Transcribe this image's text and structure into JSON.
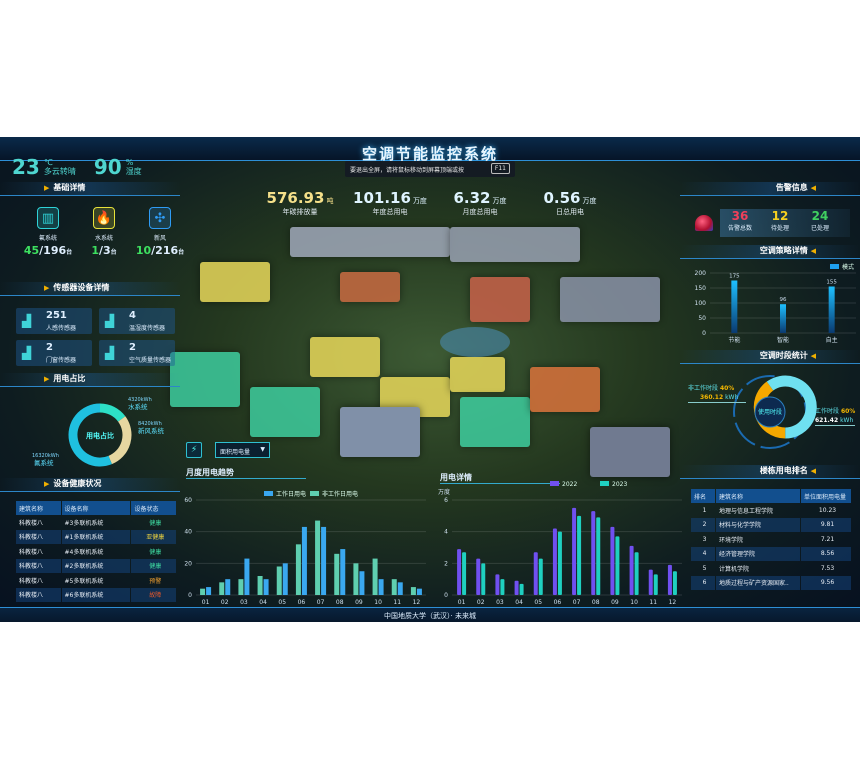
{
  "header": {
    "title": "空调节能监控系统",
    "fullscreen_tip": "要退出全屏，请将鼠标移动到屏幕顶端或按",
    "fullscreen_key": "F11"
  },
  "weather": {
    "temp": "23",
    "temp_unit": "℃",
    "condition": "多云转晴",
    "humidity": "90",
    "humidity_unit": "%",
    "humidity_label": "湿度"
  },
  "stats": [
    {
      "value": "576.93",
      "unit": "吨",
      "label": "年碳排放量",
      "color": "#f5e08a"
    },
    {
      "value": "101.16",
      "unit": "万度",
      "label": "年度总用电",
      "color": "#dff4ff"
    },
    {
      "value": "6.32",
      "unit": "万度",
      "label": "月度总用电",
      "color": "#dff4ff"
    },
    {
      "value": "0.56",
      "unit": "万度",
      "label": "日总用电",
      "color": "#dff4ff"
    }
  ],
  "basic": {
    "title": "基础详情",
    "systems": [
      {
        "name": "氟系统",
        "on": "45",
        "total": "/196",
        "unit": "台",
        "icon": "fluorine-system-icon",
        "color": "#2fd3d8"
      },
      {
        "name": "水系统",
        "on": "1",
        "total": "/3",
        "unit": "台",
        "icon": "water-system-icon",
        "color": "#e8e23a"
      },
      {
        "name": "新风",
        "on": "10",
        "total": "/216",
        "unit": "台",
        "icon": "fresh-air-fan-icon",
        "color": "#2f9cf5"
      }
    ]
  },
  "sensors": {
    "title": "传感器设备详情",
    "items": [
      {
        "value": "251",
        "label": "人感传感器"
      },
      {
        "value": "4",
        "label": "温湿度传感器"
      },
      {
        "value": "2",
        "label": "门窗传感器"
      },
      {
        "value": "2",
        "label": "空气质量传感器"
      }
    ]
  },
  "power_share": {
    "title": "用电占比",
    "center": "用电占比",
    "slices": [
      {
        "name": "水系统",
        "value": "4320kWh",
        "num": 4320,
        "color": "#2de0c6"
      },
      {
        "name": "新风系统",
        "value": "8420kWh",
        "num": 8420,
        "color": "#e6d6a0"
      },
      {
        "name": "氟系统",
        "value": "16320kWh",
        "num": 16320,
        "color": "#1fc0e0"
      }
    ]
  },
  "health": {
    "title": "设备健康状况",
    "columns": [
      "建筑名称",
      "设备名称",
      "设备状态"
    ],
    "rows": [
      [
        "科教楼八",
        "#3多联机系统",
        "健康"
      ],
      [
        "科教楼八",
        "#1多联机系统",
        "亚健康"
      ],
      [
        "科教楼八",
        "#4多联机系统",
        "健康"
      ],
      [
        "科教楼八",
        "#2多联机系统",
        "健康"
      ],
      [
        "科教楼八",
        "#5多联机系统",
        "预警"
      ],
      [
        "科教楼八",
        "#6多联机系统",
        "故障"
      ]
    ],
    "status_colors": {
      "健康": "#3ed9a0",
      "亚健康": "#e8d040",
      "预警": "#f0a030",
      "故障": "#f05a2a"
    }
  },
  "alarm": {
    "title": "告警信息",
    "items": [
      {
        "value": "36",
        "label": "告警总数",
        "color": "#f0405a"
      },
      {
        "value": "12",
        "label": "待处理",
        "color": "#f5d020"
      },
      {
        "value": "24",
        "label": "已处理",
        "color": "#40d060"
      }
    ]
  },
  "strategy": {
    "title": "空调策略详情"
  },
  "period": {
    "title": "空调时段统计",
    "center": "使用时段",
    "nonwork": {
      "label": "非工作时段",
      "pct": "40%",
      "value": "360.12",
      "unit": "kWh",
      "num": 40,
      "color": "#f5a800"
    },
    "work": {
      "label": "工作时段",
      "pct": "60%",
      "value": "621.42",
      "unit": "kWh",
      "num": 60,
      "color": "#6fe0f0"
    }
  },
  "ranking": {
    "title": "楼栋用电排名",
    "columns": [
      "排名",
      "建筑名称",
      "单位面积用电量"
    ],
    "rows": [
      [
        "1",
        "地理与信息工程学院",
        "10.23"
      ],
      [
        "2",
        "材料与化学学院",
        "9.81"
      ],
      [
        "3",
        "环境学院",
        "7.21"
      ],
      [
        "4",
        "经济管理学院",
        "8.56"
      ],
      [
        "5",
        "计算机学院",
        "7.53"
      ],
      [
        "6",
        "地质过程与矿产资源国家..",
        "9.56"
      ]
    ]
  },
  "selector": {
    "value": "面积用电量"
  },
  "footer": "中国地质大学（武汉）· 未来城",
  "chart_data": [
    {
      "type": "bar",
      "title": "空调策略详情",
      "categories": [
        "节能",
        "智能",
        "自主"
      ],
      "series": [
        {
          "name": "模式",
          "values": [
            175,
            96,
            155
          ]
        }
      ],
      "ylim": [
        0,
        200
      ],
      "yticks": [
        0,
        50,
        100,
        150,
        200
      ],
      "show_data_labels": true,
      "legend": "top-right"
    },
    {
      "type": "bar",
      "title": "月度用电趋势",
      "categories": [
        "01",
        "02",
        "03",
        "04",
        "05",
        "06",
        "07",
        "08",
        "09",
        "10",
        "11",
        "12"
      ],
      "series": [
        {
          "name": "工作日用电",
          "color": "#3aa8f0",
          "values": [
            5,
            10,
            23,
            10,
            20,
            43,
            43,
            29,
            15,
            10,
            8,
            4
          ]
        },
        {
          "name": "非工作日用电",
          "color": "#5fcfb0",
          "values": [
            4,
            8,
            10,
            12,
            18,
            32,
            47,
            26,
            20,
            23,
            10,
            5
          ]
        }
      ],
      "ylim": [
        0,
        60
      ],
      "yticks": [
        0,
        20,
        40,
        60
      ],
      "legend": "top"
    },
    {
      "type": "bar",
      "title": "用电详情",
      "ylabel": "万度",
      "categories": [
        "01",
        "02",
        "03",
        "04",
        "05",
        "06",
        "07",
        "08",
        "09",
        "10",
        "11",
        "12"
      ],
      "series": [
        {
          "name": "2022",
          "color": "#7050f0",
          "values": [
            2.9,
            2.3,
            1.3,
            0.9,
            2.7,
            4.2,
            5.5,
            5.3,
            4.3,
            3.1,
            1.6,
            1.9
          ]
        },
        {
          "name": "2023",
          "color": "#1fd0c0",
          "values": [
            2.7,
            2.0,
            1.0,
            0.7,
            2.3,
            4.0,
            5.0,
            4.9,
            3.7,
            2.7,
            1.3,
            1.5
          ]
        }
      ],
      "ylim": [
        0,
        6
      ],
      "yticks": [
        0,
        2,
        4,
        6
      ],
      "legend": "top"
    }
  ]
}
